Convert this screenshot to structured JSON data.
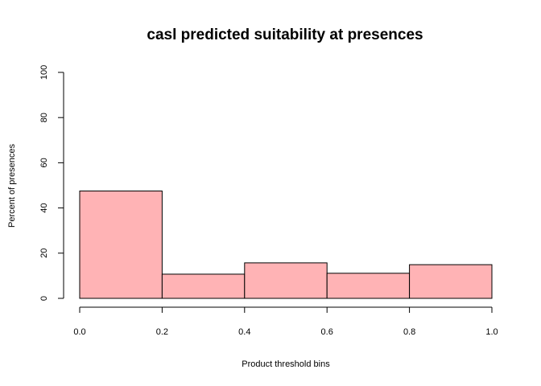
{
  "chart_data": {
    "type": "bar",
    "title": "casl predicted suitability at presences",
    "xlabel": "Product threshold bins",
    "ylabel": "Percent of presences",
    "bins": [
      [
        0.0,
        0.2
      ],
      [
        0.2,
        0.4
      ],
      [
        0.4,
        0.6
      ],
      [
        0.6,
        0.8
      ],
      [
        0.8,
        1.0
      ]
    ],
    "values": [
      47.5,
      10.7,
      15.7,
      11.1,
      14.9
    ],
    "xlim": [
      0,
      1
    ],
    "ylim": [
      0,
      100
    ],
    "xticks": [
      "0.0",
      "0.2",
      "0.4",
      "0.6",
      "0.8",
      "1.0"
    ],
    "yticks": [
      "0",
      "20",
      "40",
      "60",
      "80",
      "100"
    ],
    "bar_color": "#FFB3B5",
    "grid": false,
    "legend": "none"
  }
}
